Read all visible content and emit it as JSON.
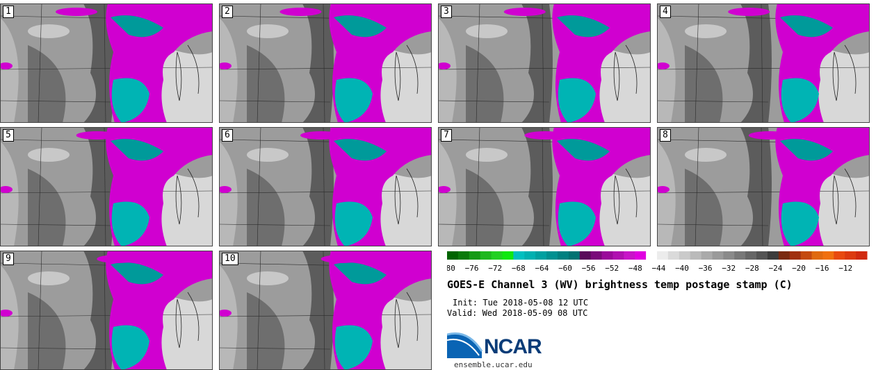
{
  "panels": [
    {
      "label": "1"
    },
    {
      "label": "2"
    },
    {
      "label": "3"
    },
    {
      "label": "4"
    },
    {
      "label": "5"
    },
    {
      "label": "6"
    },
    {
      "label": "7"
    },
    {
      "label": "8"
    },
    {
      "label": "9"
    },
    {
      "label": "10"
    }
  ],
  "colorbar": {
    "ticks": [
      "−80",
      "−76",
      "−72",
      "−68",
      "−64",
      "−60",
      "−56",
      "−52",
      "−48",
      "−44",
      "−40",
      "−36",
      "−32",
      "−28",
      "−24",
      "−20",
      "−16",
      "−12"
    ],
    "colors": [
      "#006400",
      "#0a7a0a",
      "#159a15",
      "#1fb81f",
      "#22d022",
      "#10e810",
      "#00bfbf",
      "#00b0b0",
      "#00a0a0",
      "#009090",
      "#008080",
      "#007272",
      "#5a0a5a",
      "#7a0a7a",
      "#9a0a9a",
      "#b010b0",
      "#c814c8",
      "#e000e0",
      "#ffffff",
      "#ececec",
      "#dadada",
      "#cacaca",
      "#bababa",
      "#aaaaaa",
      "#9a9a9a",
      "#8a8a8a",
      "#787878",
      "#666666",
      "#545454",
      "#3c3c3c",
      "#7a2a10",
      "#a03010",
      "#c44a10",
      "#e06a10",
      "#f07010",
      "#e84a10",
      "#dc3a10",
      "#d02a10"
    ]
  },
  "title": "GOES-E Channel 3 (WV) brightness temp postage stamp (C)",
  "init": "Init: Tue 2018-05-08 12 UTC",
  "valid": "Valid: Wed 2018-05-09 08 UTC",
  "logo": {
    "name": "ncar-logo",
    "text": "NCAR"
  },
  "site": "ensemble.ucar.edu"
}
